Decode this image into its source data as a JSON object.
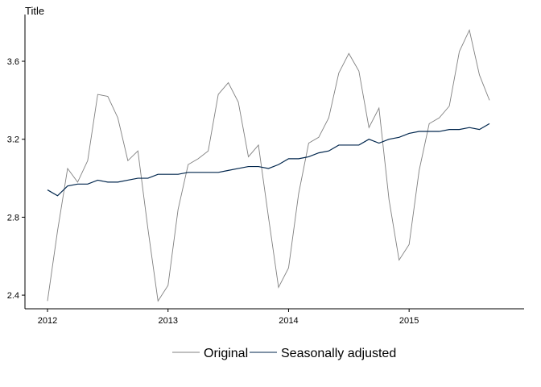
{
  "chart_data": {
    "type": "line",
    "title": "Title",
    "xlabel": "",
    "ylabel": "",
    "grid": false,
    "legend_position": "bottom",
    "xlim": [
      2012.0,
      2015.75
    ],
    "ylim": [
      2.33,
      3.84
    ],
    "x_ticks": [
      2012,
      2013,
      2014,
      2015
    ],
    "x_tick_labels": [
      "2012",
      "2013",
      "2014",
      "2015"
    ],
    "y_ticks": [
      2.4,
      2.8,
      3.2,
      3.6
    ],
    "y_tick_labels": [
      "2.4",
      "2.8",
      "3.2",
      "3.6"
    ],
    "x": [
      2012.0,
      2012.0833,
      2012.1667,
      2012.25,
      2012.3333,
      2012.4167,
      2012.5,
      2012.5833,
      2012.6667,
      2012.75,
      2012.8333,
      2012.9167,
      2013.0,
      2013.0833,
      2013.1667,
      2013.25,
      2013.3333,
      2013.4167,
      2013.5,
      2013.5833,
      2013.6667,
      2013.75,
      2013.8333,
      2013.9167,
      2014.0,
      2014.0833,
      2014.1667,
      2014.25,
      2014.3333,
      2014.4167,
      2014.5,
      2014.5833,
      2014.6667,
      2014.75,
      2014.8333,
      2014.9167,
      2015.0,
      2015.0833,
      2015.1667,
      2015.25,
      2015.3333,
      2015.4167,
      2015.5,
      2015.5833,
      2015.6667
    ],
    "series": [
      {
        "name": "Original",
        "color": "#808080",
        "values": [
          2.37,
          2.73,
          3.05,
          2.98,
          3.09,
          3.43,
          3.42,
          3.31,
          3.09,
          3.14,
          2.74,
          2.37,
          2.45,
          2.84,
          3.07,
          3.1,
          3.14,
          3.43,
          3.49,
          3.39,
          3.11,
          3.17,
          2.8,
          2.44,
          2.54,
          2.92,
          3.18,
          3.21,
          3.31,
          3.54,
          3.64,
          3.55,
          3.26,
          3.36,
          2.89,
          2.58,
          2.66,
          3.04,
          3.28,
          3.31,
          3.37,
          3.65,
          3.76,
          3.53,
          3.4
        ]
      },
      {
        "name": "Seasonally adjusted",
        "color": "#00264d",
        "values": [
          2.94,
          2.91,
          2.96,
          2.97,
          2.97,
          2.99,
          2.98,
          2.98,
          2.99,
          3.0,
          3.0,
          3.02,
          3.02,
          3.02,
          3.03,
          3.03,
          3.03,
          3.03,
          3.04,
          3.05,
          3.06,
          3.06,
          3.05,
          3.07,
          3.1,
          3.1,
          3.11,
          3.13,
          3.14,
          3.17,
          3.17,
          3.17,
          3.2,
          3.18,
          3.2,
          3.21,
          3.23,
          3.24,
          3.24,
          3.24,
          3.25,
          3.25,
          3.26,
          3.25,
          3.28
        ]
      }
    ]
  }
}
